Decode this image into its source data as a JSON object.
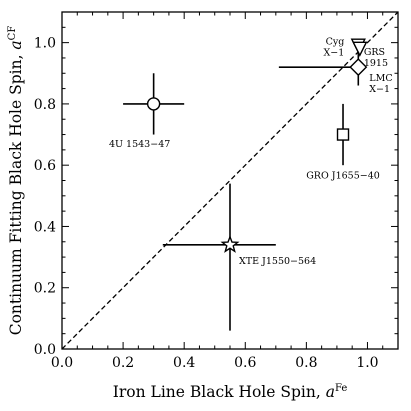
{
  "chart_data": {
    "type": "scatter",
    "xlabel": "Iron Line Black Hole Spin, ",
    "xlabel_sym": "a",
    "xlabel_sup": "Fe",
    "ylabel": "Continuum Fitting Black Hole Spin, ",
    "ylabel_sym": "a",
    "ylabel_sup": "CF",
    "xlim": [
      0,
      1.1
    ],
    "ylim": [
      0,
      1.1
    ],
    "xticks": [
      "0.0",
      "0.2",
      "0.4",
      "0.6",
      "0.8",
      "1.0"
    ],
    "yticks": [
      "0.0",
      "0.2",
      "0.4",
      "0.6",
      "0.8",
      "1.0"
    ],
    "reference_line": "y = x",
    "points": [
      {
        "label": [
          "4U 1543−47"
        ],
        "marker": "circle",
        "x": 0.3,
        "y": 0.8,
        "x_err": [
          0.1,
          0.1
        ],
        "y_err": [
          0.1,
          0.1
        ]
      },
      {
        "label": [
          "GRO J1655−40"
        ],
        "marker": "square",
        "x": 0.92,
        "y": 0.7,
        "x_err": [
          0.0,
          0.0
        ],
        "y_err": [
          0.1,
          0.1
        ]
      },
      {
        "label": [
          "XTE J1550−564"
        ],
        "marker": "star",
        "x": 0.55,
        "y": 0.34,
        "x_err": [
          0.22,
          0.15
        ],
        "y_err": [
          0.28,
          0.2
        ]
      },
      {
        "label": [
          "Cyg",
          "X−1"
        ],
        "marker": "triangle-down",
        "x": 0.97,
        "y": 0.99,
        "x_err": [
          0.0,
          0.0
        ],
        "y_err": [
          0.0,
          0.0
        ]
      },
      {
        "label": [
          "GRS",
          "1915"
        ],
        "marker": "triangle-down",
        "x": 0.975,
        "y": 0.98,
        "x_err": [
          0.0,
          0.0
        ],
        "y_err": [
          0.0,
          0.0
        ]
      },
      {
        "label": [
          "LMC",
          "X−1"
        ],
        "marker": "diamond",
        "x": 0.97,
        "y": 0.92,
        "x_err": [
          0.26,
          0.0
        ],
        "y_err": [
          0.06,
          0.05
        ]
      }
    ]
  }
}
